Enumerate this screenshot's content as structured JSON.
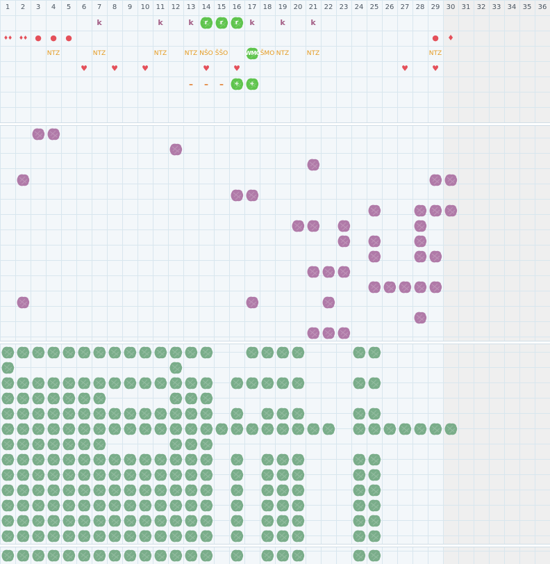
{
  "columns": [
    "1",
    "2",
    "3",
    "4",
    "5",
    "6",
    "7",
    "8",
    "9",
    "10",
    "11",
    "12",
    "13",
    "14",
    "15",
    "16",
    "17",
    "18",
    "19",
    "20",
    "21",
    "22",
    "23",
    "24",
    "25",
    "26",
    "27",
    "28",
    "29",
    "30",
    "31",
    "32",
    "33",
    "34",
    "35",
    "36"
  ],
  "colors": {
    "grid_bg": "#f3f7fa",
    "grid_line": "#d8e6ee",
    "shaded_bg": "#efefef",
    "purple_blob": "#b07aa8",
    "green_blob": "#7aad8a",
    "bright_green": "#5fc44d",
    "orange_text": "#e49a1f",
    "red_symbol": "#e4505a",
    "k_text": "#a45f86"
  },
  "section1": {
    "k_marks": [
      {
        "col": 7,
        "row": 1,
        "text": "k"
      },
      {
        "col": 11,
        "row": 1,
        "text": "k"
      },
      {
        "col": 13,
        "row": 1,
        "text": "k"
      },
      {
        "col": 17,
        "row": 1,
        "text": "k"
      },
      {
        "col": 19,
        "row": 1,
        "text": "k"
      },
      {
        "col": 21,
        "row": 1,
        "text": "k"
      }
    ],
    "green_tags": [
      {
        "col": 14,
        "row": 1,
        "text": "r"
      },
      {
        "col": 15,
        "row": 1,
        "text": "r"
      },
      {
        "col": 16,
        "row": 1,
        "text": "r"
      },
      {
        "col": 17,
        "row": 3,
        "text": "WMO"
      },
      {
        "col": 16,
        "row": 5,
        "text": "+"
      },
      {
        "col": 17,
        "row": 5,
        "text": "+"
      }
    ],
    "red_symbols": [
      {
        "col": 1,
        "row": 2,
        "text": "♦♦"
      },
      {
        "col": 2,
        "row": 2,
        "text": "♦♦"
      },
      {
        "col": 3,
        "row": 2,
        "text": "●"
      },
      {
        "col": 4,
        "row": 2,
        "text": "●"
      },
      {
        "col": 5,
        "row": 2,
        "text": "●"
      },
      {
        "col": 29,
        "row": 2,
        "text": "●"
      },
      {
        "col": 30,
        "row": 2,
        "text": "♦"
      },
      {
        "col": 6,
        "row": 4,
        "text": "♥"
      },
      {
        "col": 8,
        "row": 4,
        "text": "♥"
      },
      {
        "col": 10,
        "row": 4,
        "text": "♥"
      },
      {
        "col": 14,
        "row": 4,
        "text": "♥"
      },
      {
        "col": 16,
        "row": 4,
        "text": "♥"
      },
      {
        "col": 27,
        "row": 4,
        "text": "♥"
      },
      {
        "col": 29,
        "row": 4,
        "text": "♥"
      }
    ],
    "orange_labels": [
      {
        "col": 4,
        "row": 3,
        "text": "NTZ"
      },
      {
        "col": 7,
        "row": 3,
        "text": "NTZ"
      },
      {
        "col": 11,
        "row": 3,
        "text": "NTZ"
      },
      {
        "col": 13,
        "row": 3,
        "text": "NTZ"
      },
      {
        "col": 14,
        "row": 3,
        "text": "NŠO"
      },
      {
        "col": 15,
        "row": 3,
        "text": "ŠŠO"
      },
      {
        "col": 18,
        "row": 3,
        "text": "ŠMO"
      },
      {
        "col": 19,
        "row": 3,
        "text": "NTZ"
      },
      {
        "col": 21,
        "row": 3,
        "text": "NTZ"
      },
      {
        "col": 29,
        "row": 3,
        "text": "NTZ"
      }
    ],
    "dashes": [
      {
        "col": 13,
        "row": 5,
        "text": "–"
      },
      {
        "col": 14,
        "row": 5,
        "text": "–"
      },
      {
        "col": 15,
        "row": 5,
        "text": "–"
      }
    ]
  },
  "section2": {
    "rows": [
      [
        3,
        4
      ],
      [
        12
      ],
      [
        21
      ],
      [
        2,
        29,
        30
      ],
      [
        16,
        17
      ],
      [
        25,
        28,
        29,
        30
      ],
      [
        20,
        21,
        23,
        28
      ],
      [
        23,
        25,
        28
      ],
      [
        25,
        28,
        29
      ],
      [
        21,
        22,
        23
      ],
      [
        25,
        26,
        27,
        28,
        29
      ],
      [
        2,
        17,
        22
      ],
      [
        28
      ],
      [
        21,
        22,
        23
      ]
    ]
  },
  "section3": {
    "rows": [
      [
        1,
        2,
        3,
        4,
        5,
        6,
        7,
        8,
        9,
        10,
        11,
        12,
        13,
        14,
        17,
        18,
        19,
        20,
        24,
        25
      ],
      [
        1,
        12
      ],
      [
        1,
        2,
        3,
        4,
        5,
        6,
        7,
        8,
        9,
        10,
        11,
        12,
        13,
        14,
        16,
        17,
        18,
        19,
        20,
        24,
        25
      ],
      [
        1,
        2,
        3,
        4,
        5,
        6,
        7,
        12,
        13,
        14
      ],
      [
        1,
        2,
        3,
        4,
        5,
        6,
        7,
        8,
        9,
        10,
        11,
        12,
        13,
        14,
        16,
        18,
        19,
        20,
        24,
        25
      ],
      [
        1,
        2,
        3,
        4,
        5,
        6,
        7,
        8,
        9,
        10,
        11,
        12,
        13,
        14,
        15,
        16,
        17,
        18,
        19,
        20,
        21,
        22,
        24,
        25,
        26,
        27,
        28,
        29,
        30
      ],
      [
        1,
        2,
        3,
        4,
        5,
        6,
        7,
        12,
        13,
        14
      ],
      [
        1,
        2,
        3,
        4,
        5,
        6,
        7,
        8,
        9,
        10,
        11,
        12,
        13,
        14,
        16,
        18,
        19,
        20,
        24,
        25
      ],
      [
        1,
        2,
        3,
        4,
        5,
        6,
        7,
        8,
        9,
        10,
        11,
        12,
        13,
        14,
        16,
        18,
        19,
        20,
        24,
        25
      ],
      [
        1,
        2,
        3,
        4,
        5,
        6,
        7,
        8,
        9,
        10,
        11,
        12,
        13,
        14,
        16,
        18,
        19,
        20,
        24,
        25
      ],
      [
        1,
        2,
        3,
        4,
        5,
        6,
        7,
        8,
        9,
        10,
        11,
        12,
        13,
        14,
        16,
        18,
        19,
        20,
        24,
        25
      ],
      [
        1,
        2,
        3,
        4,
        5,
        6,
        7,
        8,
        9,
        10,
        11,
        12,
        13,
        14,
        16,
        18,
        19,
        20,
        24,
        25
      ],
      [
        1,
        2,
        3,
        4,
        5,
        6,
        7,
        8,
        9,
        10,
        11,
        12,
        13,
        14,
        16,
        18,
        19,
        20,
        24,
        25
      ]
    ]
  },
  "section4": {
    "rows": [
      [
        1,
        2,
        3,
        4,
        5,
        6,
        7,
        8,
        9,
        10,
        11,
        12,
        13,
        14,
        16,
        18,
        19,
        20,
        24,
        25
      ]
    ]
  }
}
